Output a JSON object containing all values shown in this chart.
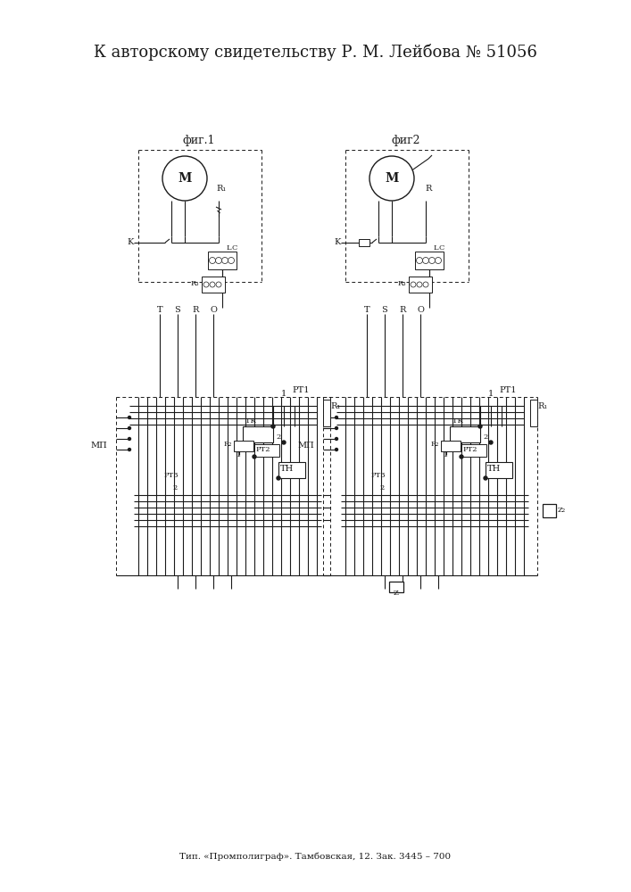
{
  "title": "К авторскому свидетельству Р. М. Лейбова № 51056",
  "footer": "Тип. «Промполиграф». Тамбовская, 12. Зак. 3445 – 700",
  "bg_color": "#ffffff",
  "line_color": "#1a1a1a",
  "fig1_label": "фиг.1",
  "fig2_label": "фиг2",
  "title_fontsize": 13,
  "footer_fontsize": 7.5
}
